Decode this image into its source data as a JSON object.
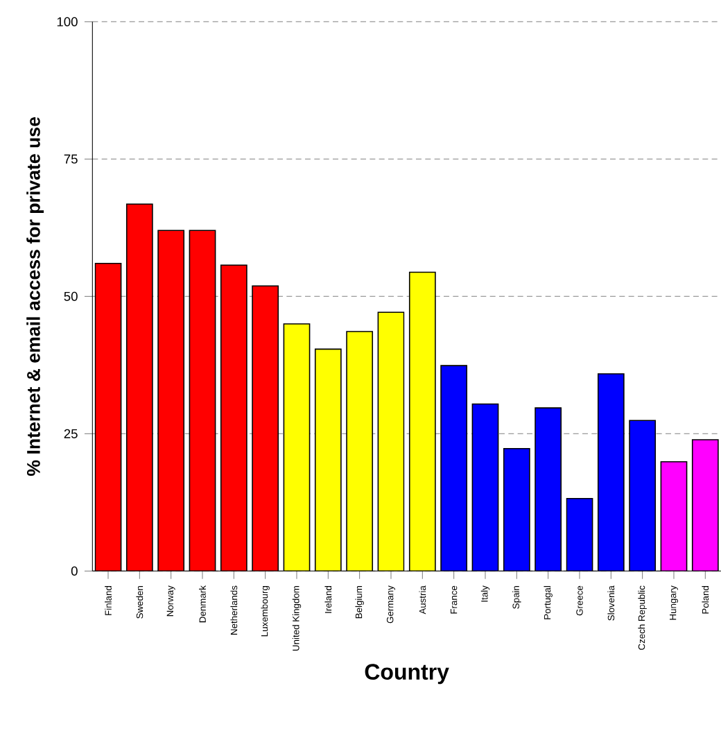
{
  "chart_data": {
    "type": "bar",
    "xlabel": "Country",
    "ylabel": "% Internet & email access for private use",
    "categories": [
      "Finland",
      "Sweden",
      "Norway",
      "Denmark",
      "Netherlands",
      "Luxembourg",
      "United Kingdom",
      "Ireland",
      "Belgium",
      "Germany",
      "Austria",
      "France",
      "Italy",
      "Spain",
      "Portugal",
      "Greece",
      "Slovenia",
      "Czech Republic",
      "Hungary",
      "Poland"
    ],
    "values": [
      56.0,
      66.8,
      62.0,
      62.0,
      55.7,
      51.9,
      45.0,
      40.4,
      43.6,
      47.1,
      54.4,
      37.4,
      30.4,
      22.3,
      29.7,
      13.2,
      35.9,
      27.4,
      19.9,
      23.9
    ],
    "colors": [
      "#ff0000",
      "#ff0000",
      "#ff0000",
      "#ff0000",
      "#ff0000",
      "#ff0000",
      "#ffff00",
      "#ffff00",
      "#ffff00",
      "#ffff00",
      "#ffff00",
      "#0000ff",
      "#0000ff",
      "#0000ff",
      "#0000ff",
      "#0000ff",
      "#0000ff",
      "#0000ff",
      "#ff00ff",
      "#ff00ff"
    ],
    "ylim": [
      0,
      100
    ],
    "yticks": [
      0,
      25,
      50,
      75,
      100
    ],
    "grid": "y"
  }
}
